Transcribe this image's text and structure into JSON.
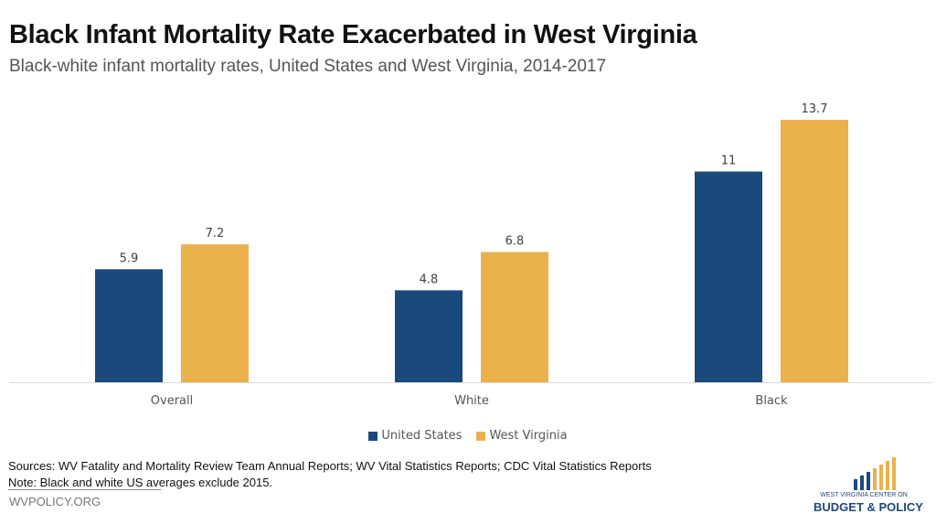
{
  "chart_data": {
    "type": "bar",
    "title": "Black Infant Mortality Rate Exacerbated in West Virginia",
    "subtitle": "Black-white infant mortality rates, United States and West Virginia, 2014-2017",
    "categories": [
      "Overall",
      "White",
      "Black"
    ],
    "series": [
      {
        "name": "United States",
        "color": "#1a4a7c",
        "values": [
          5.9,
          4.8,
          11
        ]
      },
      {
        "name": "West Virginia",
        "color": "#eab14d",
        "values": [
          7.2,
          6.8,
          13.7
        ]
      }
    ],
    "value_labels": [
      [
        "5.9",
        "4.8",
        "11"
      ],
      [
        "7.2",
        "6.8",
        "13.7"
      ]
    ],
    "xlabel": "",
    "ylabel": "",
    "ylim": [
      0,
      14.5
    ],
    "grid": false,
    "legend": "bottom"
  },
  "footer": {
    "sources": "Sources: WV Fatality and Mortality Review Team Annual Reports; WV Vital Statistics Reports; CDC Vital Statistics Reports",
    "note": "Note: Black and white US averages exclude 2015.",
    "site": "WVPOLICY.ORG"
  },
  "logo": {
    "line1": "WEST VIRGINIA CENTER ON",
    "line2": "BUDGET & POLICY"
  }
}
